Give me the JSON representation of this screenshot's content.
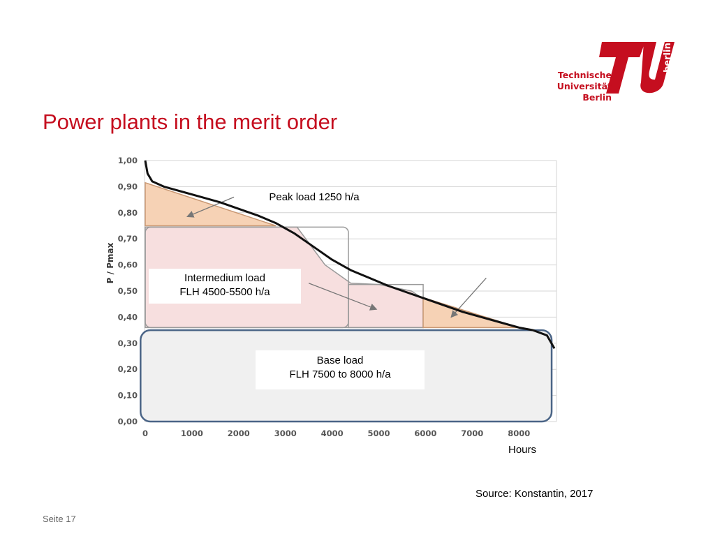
{
  "header": {
    "title": "Power plants in the merit order",
    "logo_lines": [
      "Technische",
      "Universität",
      "Berlin"
    ],
    "logo_mark_text": "berlin",
    "brand_color": "#c50e1f"
  },
  "chart_data": {
    "type": "area",
    "title": "",
    "xlabel": "Hours",
    "ylabel": "P / Pmax",
    "xlim": [
      0,
      8760
    ],
    "ylim": [
      0,
      1
    ],
    "xticks": [
      0,
      1000,
      2000,
      3000,
      4000,
      5000,
      6000,
      7000,
      8000
    ],
    "yticks": [
      0,
      0.1,
      0.2,
      0.3,
      0.4,
      0.5,
      0.6,
      0.7,
      0.8,
      0.9,
      1.0
    ],
    "ytick_labels": [
      "0,00",
      "0,10",
      "0,20",
      "0,30",
      "0,40",
      "0,50",
      "0,60",
      "0,70",
      "0,80",
      "0,90",
      "1,00"
    ],
    "grid": true,
    "load_duration_curve": {
      "x": [
        0,
        50,
        150,
        400,
        800,
        1200,
        1600,
        2000,
        2400,
        2800,
        3200,
        3600,
        4000,
        4400,
        4800,
        5200,
        5600,
        6000,
        6400,
        6800,
        7200,
        7600,
        8000,
        8300,
        8600,
        8760
      ],
      "y": [
        1.0,
        0.95,
        0.92,
        0.9,
        0.88,
        0.86,
        0.84,
        0.815,
        0.79,
        0.76,
        0.72,
        0.67,
        0.62,
        0.58,
        0.55,
        0.52,
        0.495,
        0.47,
        0.445,
        0.42,
        0.4,
        0.38,
        0.36,
        0.35,
        0.33,
        0.28
      ]
    },
    "annotations": [
      {
        "text_lines": [
          "Peak load 1250 h/a"
        ]
      },
      {
        "text_lines": [
          "Intermedium load",
          "FLH 4500-5500 h/a"
        ]
      },
      {
        "text_lines": [
          "Base load",
          "FLH 7500 to 8000 h/a"
        ]
      }
    ],
    "colors": {
      "curve": "#111111",
      "peak_fill": "#f6d2b5",
      "peak_stroke": "#c99873",
      "intermediate_fill": "#f7dfdf",
      "intermediate_stroke": "#9a9a9a",
      "base_fill": "#f0f0f0",
      "base_stroke": "#4a6486",
      "grid": "#d4d4d4",
      "tick_label": "#555555"
    }
  },
  "footer": {
    "source": "Source: Konstantin, 2017",
    "page": "Seite 17"
  }
}
